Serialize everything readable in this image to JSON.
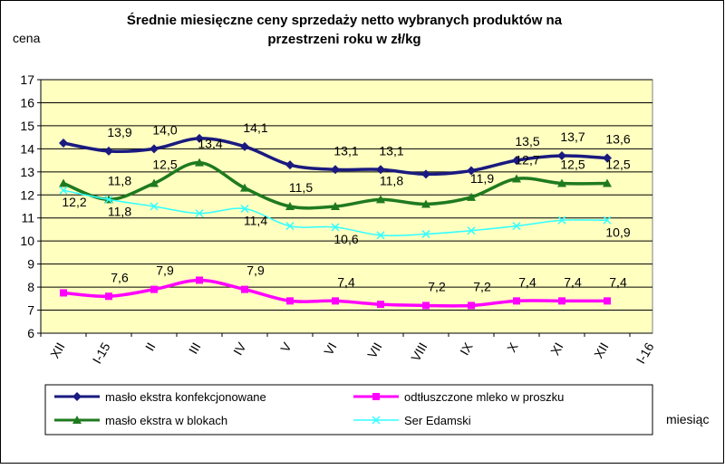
{
  "chart_data": {
    "type": "line",
    "title": [
      "Średnie miesięczne ceny sprzedaży netto  wybranych produktów na",
      "przestrzeni roku w zł/kg"
    ],
    "ylabel": "cena",
    "xlabel": "miesiąc",
    "categories": [
      "XII",
      "I-15",
      "II",
      "III",
      "IV",
      "V",
      "VI",
      "VII",
      "VIII",
      "IX",
      "X",
      "XI",
      "XII",
      "I-16"
    ],
    "ylim": [
      6,
      17
    ],
    "yticks": [
      6,
      7,
      8,
      9,
      10,
      11,
      12,
      13,
      14,
      15,
      16,
      17
    ],
    "grid": true,
    "series": [
      {
        "name": "masło ekstra konfekcjonowane",
        "color": "#1a1a80",
        "marker": "diamond",
        "values": [
          14.25,
          13.9,
          14.0,
          14.45,
          14.1,
          13.3,
          13.1,
          13.1,
          12.9,
          13.05,
          13.5,
          13.7,
          13.6,
          null
        ],
        "value_labels": [
          null,
          "13,9",
          "14,0",
          null,
          "14,1",
          null,
          "13,1",
          "13,1",
          null,
          null,
          "13,5",
          "13,7",
          "13,6",
          null
        ]
      },
      {
        "name": "odtłuszczone mleko w proszku",
        "color": "#ff00ff",
        "marker": "square",
        "values": [
          7.75,
          7.6,
          7.9,
          8.3,
          7.9,
          7.4,
          7.4,
          7.25,
          7.2,
          7.2,
          7.4,
          7.4,
          7.4,
          null
        ],
        "value_labels": [
          null,
          "7,6",
          "7,9",
          null,
          "7,9",
          null,
          "7,4",
          null,
          "7,2",
          "7,2",
          "7,4",
          "7,4",
          "7,4",
          null
        ]
      },
      {
        "name": "masło ekstra w blokach",
        "color": "#1f7a1f",
        "marker": "triangle",
        "values": [
          12.5,
          11.8,
          12.5,
          13.4,
          12.3,
          11.5,
          11.5,
          11.8,
          11.6,
          11.9,
          12.7,
          12.5,
          12.5,
          null
        ],
        "value_labels": [
          null,
          "11,8",
          "12,5",
          "13,4",
          null,
          "11,5",
          null,
          "11,8",
          null,
          "11,9",
          "12,7",
          "12,5",
          "12,5",
          null
        ]
      },
      {
        "name": "Ser Edamski",
        "color": "#33ffff",
        "marker": "x",
        "values": [
          12.2,
          11.8,
          11.5,
          11.2,
          11.4,
          10.65,
          10.6,
          10.25,
          10.3,
          10.45,
          10.65,
          10.9,
          10.9,
          null
        ],
        "value_labels": [
          "12,2",
          "11,8",
          null,
          null,
          "11,4",
          null,
          "10,6",
          null,
          null,
          null,
          null,
          null,
          "10,9",
          null
        ]
      }
    ]
  }
}
